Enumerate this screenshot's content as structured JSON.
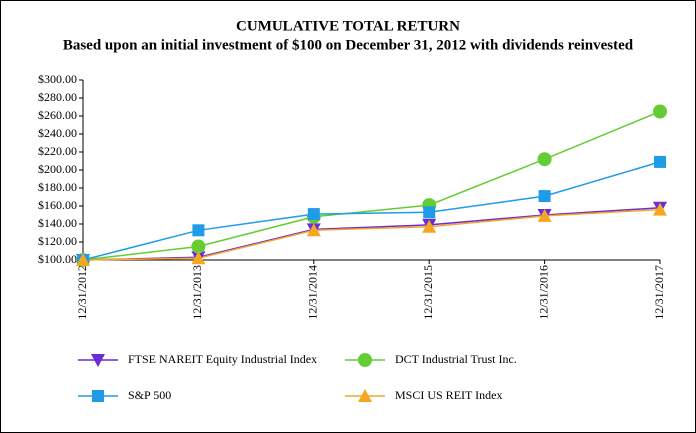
{
  "chart_data": {
    "type": "line",
    "title": "CUMULATIVE TOTAL RETURN",
    "subtitle": "Based upon an initial investment of $100 on December 31, 2012 with dividends reinvested",
    "categories": [
      "12/31/2012",
      "12/31/2013",
      "12/31/2014",
      "12/31/2015",
      "12/31/2016",
      "12/31/2017"
    ],
    "series": [
      {
        "name": "FTSE NAREIT Equity Industrial Index",
        "color": "#6a2bd9",
        "marker": "triangle-down",
        "values": [
          100,
          103,
          134,
          139,
          150,
          158
        ]
      },
      {
        "name": "DCT Industrial Trust Inc.",
        "color": "#66cc33",
        "marker": "circle",
        "values": [
          100,
          115,
          148,
          161,
          212,
          265
        ]
      },
      {
        "name": "S&P 500",
        "color": "#1f9be8",
        "marker": "square",
        "values": [
          100,
          133,
          151,
          153,
          171,
          209
        ]
      },
      {
        "name": "MSCI US REIT Index",
        "color": "#f5a623",
        "marker": "triangle-up",
        "values": [
          100,
          102,
          133,
          137,
          149,
          156
        ]
      }
    ],
    "ylim": [
      100,
      300
    ],
    "yticks": [
      {
        "value": 100,
        "label": "$100.00"
      },
      {
        "value": 120,
        "label": "$120.00"
      },
      {
        "value": 140,
        "label": "$140.00"
      },
      {
        "value": 160,
        "label": "$160.00"
      },
      {
        "value": 180,
        "label": "$180.00"
      },
      {
        "value": 200,
        "label": "$200.00"
      },
      {
        "value": 220,
        "label": "$220.00"
      },
      {
        "value": 240,
        "label": "$240.00"
      },
      {
        "value": 260,
        "label": "$260.00"
      },
      {
        "value": 280,
        "label": "$280.00"
      },
      {
        "value": 300,
        "label": "$300.00"
      }
    ],
    "grid": false
  }
}
